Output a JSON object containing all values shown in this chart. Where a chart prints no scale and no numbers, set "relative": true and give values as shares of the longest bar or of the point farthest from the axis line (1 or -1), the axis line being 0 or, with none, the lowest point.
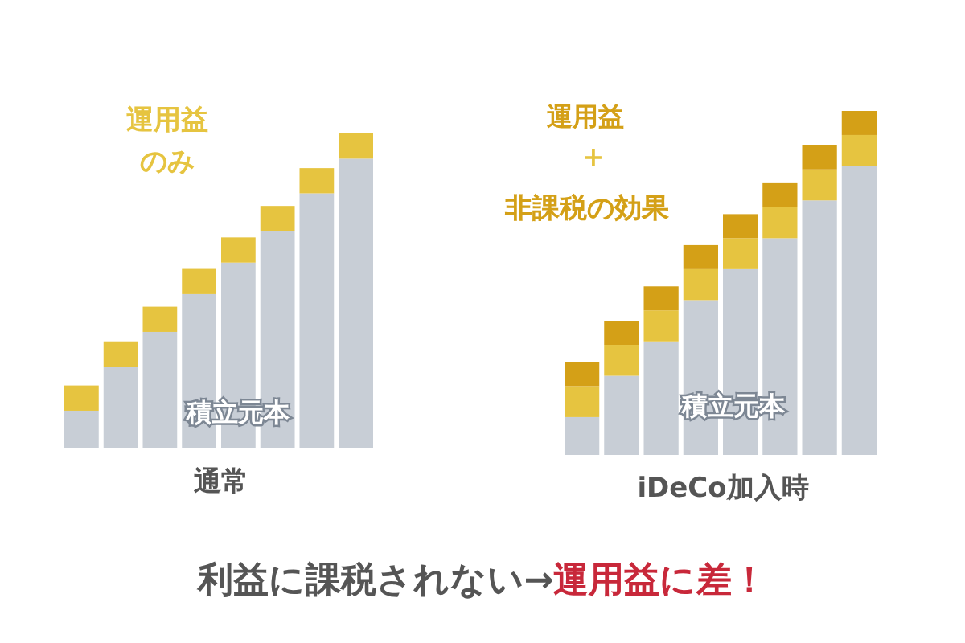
{
  "chart_data": [
    {
      "type": "bar",
      "stacked": true,
      "relative": true,
      "categories": [
        null,
        null,
        null,
        null,
        null,
        null,
        null,
        null
      ],
      "xlabel": "通常",
      "series": [
        {
          "color": "#c8ced6",
          "values": [
            0.12,
            0.26,
            0.37,
            0.49,
            0.59,
            0.69,
            0.81,
            0.92
          ]
        },
        {
          "color": "#e6c440",
          "values": [
            0.08,
            0.08,
            0.08,
            0.08,
            0.08,
            0.08,
            0.08,
            0.08
          ]
        }
      ],
      "annotations": [
        "運用益",
        "のみ",
        "積立元本"
      ]
    },
    {
      "type": "bar",
      "stacked": true,
      "relative": true,
      "categories": [
        null,
        null,
        null,
        null,
        null,
        null,
        null,
        null
      ],
      "xlabel": "iDeCo加入時",
      "series": [
        {
          "color": "#c8ced6",
          "values": [
            0.11,
            0.23,
            0.33,
            0.45,
            0.54,
            0.63,
            0.74,
            0.84
          ]
        },
        {
          "color": "#e6c440",
          "values": [
            0.09,
            0.09,
            0.09,
            0.09,
            0.09,
            0.09,
            0.09,
            0.09
          ]
        },
        {
          "color": "#d4a017",
          "values": [
            0.07,
            0.07,
            0.07,
            0.07,
            0.07,
            0.07,
            0.07,
            0.07
          ]
        }
      ],
      "annotations": [
        "運用益",
        "+",
        "非課税の効果",
        "積立元本",
        "利益に課税されない→",
        "運用益に差！"
      ]
    }
  ]
}
